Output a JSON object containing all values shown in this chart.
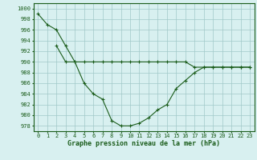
{
  "line1_x": [
    0,
    1,
    2,
    3,
    4,
    5,
    6,
    7,
    8,
    9,
    10,
    11,
    12,
    13,
    14,
    15,
    16,
    17,
    18,
    19,
    20,
    21,
    22,
    23
  ],
  "line1_y": [
    999,
    997,
    996,
    993,
    990,
    986,
    984,
    983,
    979,
    978,
    978,
    978.5,
    979.5,
    981,
    982,
    985,
    986.5,
    988,
    989,
    989,
    989,
    989,
    989,
    989
  ],
  "line2_x": [
    2,
    3,
    4,
    5,
    6,
    7,
    8,
    9,
    10,
    11,
    12,
    13,
    14,
    15,
    16,
    17,
    18,
    19,
    20,
    21,
    22,
    23
  ],
  "line2_y": [
    993,
    990,
    990,
    990,
    990,
    990,
    990,
    990,
    990,
    990,
    990,
    990,
    990,
    990,
    990,
    989,
    989,
    989,
    989,
    989,
    989,
    989
  ],
  "line_color": "#1a5c1a",
  "bg_color": "#d8f0f0",
  "grid_color": "#a0c8c8",
  "xlabel": "Graphe pression niveau de la mer (hPa)",
  "ylim": [
    977,
    1001
  ],
  "xlim": [
    -0.5,
    23.5
  ],
  "yticks": [
    978,
    980,
    982,
    984,
    986,
    988,
    990,
    992,
    994,
    996,
    998,
    1000
  ],
  "xticks": [
    0,
    1,
    2,
    3,
    4,
    5,
    6,
    7,
    8,
    9,
    10,
    11,
    12,
    13,
    14,
    15,
    16,
    17,
    18,
    19,
    20,
    21,
    22,
    23
  ],
  "xlabel_fontsize": 6.0,
  "tick_fontsize": 5.0,
  "marker": "+",
  "linewidth": 0.8,
  "markersize": 3.0
}
